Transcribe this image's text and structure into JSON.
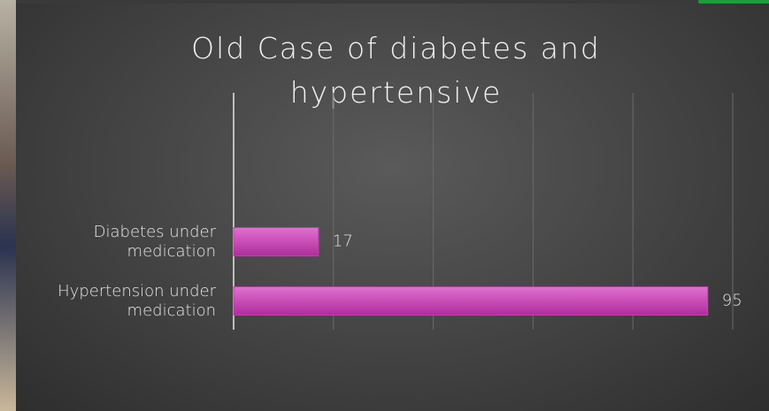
{
  "chart_data": {
    "type": "bar",
    "orientation": "horizontal",
    "title": "Old Case of diabetes and hypertensive",
    "categories": [
      "Diabetes  under medication",
      "Hypertension under medication"
    ],
    "values": [
      17,
      95
    ],
    "color": "#c63cb2",
    "xlim": [
      0,
      100
    ],
    "xticks": [
      0,
      20,
      40,
      60,
      80,
      100
    ],
    "grid": true
  }
}
